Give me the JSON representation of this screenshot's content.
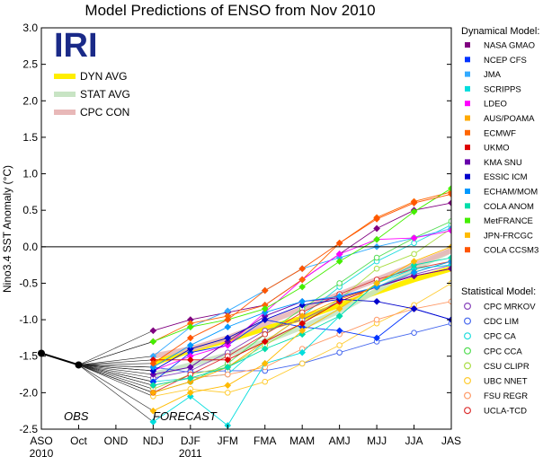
{
  "chart_data": {
    "type": "line",
    "title": "Model Predictions of ENSO from Nov 2010",
    "ylabel": "Nino3.4 SST Anomaly (°C)",
    "ylim": [
      -2.5,
      3.0
    ],
    "yticks": [
      3.0,
      2.5,
      2.0,
      1.5,
      1.0,
      0.5,
      0.0,
      -0.5,
      -1.0,
      -1.5,
      -2.0,
      -2.5
    ],
    "categories": [
      "ASO",
      "Oct",
      "OND",
      "NDJ",
      "DJF",
      "JFM",
      "FMA",
      "MAM",
      "AMJ",
      "MJJ",
      "JJA",
      "JAS"
    ],
    "year_labels": [
      {
        "label": "2010",
        "at": "ASO"
      },
      {
        "label": "2011",
        "at": "DJF"
      }
    ],
    "logo": "IRI",
    "annotations": [
      "OBS",
      "FORECAST"
    ],
    "observed": {
      "ASO": -1.46,
      "Oct": -1.62
    },
    "averages": [
      {
        "name": "DYN AVG",
        "color": "#ffee00",
        "values": [
          -1.6,
          -1.42,
          -1.28,
          -1.12,
          -0.98,
          -0.8,
          -0.62,
          -0.45,
          -0.3
        ]
      },
      {
        "name": "STAT AVG",
        "color": "#c8e4c4",
        "values": [
          -1.75,
          -1.62,
          -1.48,
          -1.3,
          -1.1,
          -0.88,
          -0.6,
          -0.3,
          -0.05
        ]
      },
      {
        "name": "CPC CON",
        "color": "#e8b8b8",
        "values": [
          -1.5,
          -1.4,
          -1.25,
          -1.05,
          -0.85,
          -0.65,
          -0.45,
          -0.25,
          -0.05
        ]
      }
    ],
    "dynamical_title": "Dynamical Model:",
    "statistical_title": "Statistical Model:",
    "dynamical": [
      {
        "name": "NASA GMAO",
        "color": "#800080",
        "values": [
          -1.15,
          -1.0,
          -0.9,
          -0.8,
          -0.45,
          -0.1,
          0.25,
          0.5,
          0.6
        ]
      },
      {
        "name": "NCEP CFS",
        "color": "#0033ff",
        "values": [
          -1.85,
          -1.45,
          -1.35,
          -1.0,
          -1.1,
          -1.15,
          -1.25,
          -0.85,
          -1.0
        ]
      },
      {
        "name": "JMA",
        "color": "#33aaff",
        "values": [
          -1.5,
          -1.1,
          -0.88,
          -0.6,
          -0.3,
          -0.15,
          0.0,
          0.12,
          0.25
        ]
      },
      {
        "name": "SCRIPPS",
        "color": "#00dddd",
        "values": [
          -2.4,
          -2.05,
          -2.45,
          -1.6,
          -1.45,
          -0.95,
          -0.5,
          -0.3,
          -0.25
        ]
      },
      {
        "name": "LDEO",
        "color": "#ff00ff",
        "values": [
          -1.7,
          -1.5,
          -1.35,
          -0.9,
          -0.45,
          -0.1,
          0.1,
          0.12,
          0.22
        ]
      },
      {
        "name": "AUS/POAMA",
        "color": "#ffaa00",
        "values": [
          -2.0,
          -1.85,
          -1.65,
          -1.3,
          -0.95,
          -0.72,
          -0.55,
          -0.35,
          -0.2
        ]
      },
      {
        "name": "ECMWF",
        "color": "#ff6600",
        "values": [
          -1.3,
          -1.05,
          -0.95,
          -0.8,
          -0.45,
          0.05,
          0.4,
          0.62,
          0.75
        ]
      },
      {
        "name": "UKMO",
        "color": "#dd0000",
        "values": [
          -1.55,
          -1.55,
          -1.55,
          -1.3,
          -1.05,
          -0.75,
          -0.55,
          -0.4,
          -0.3
        ]
      },
      {
        "name": "KMA SNU",
        "color": "#6600aa",
        "values": [
          -1.75,
          -1.65,
          -1.3,
          -0.95,
          -0.75,
          -0.7,
          -0.55,
          -0.4,
          -0.3
        ]
      },
      {
        "name": "ESSIC ICM",
        "color": "#0000cc",
        "values": [
          -1.7,
          -1.4,
          -1.25,
          -1.0,
          -0.8,
          -0.72,
          -0.75,
          -0.85,
          -1.0
        ]
      },
      {
        "name": "ECHAM/MOM",
        "color": "#0099ff",
        "values": [
          -1.65,
          -1.35,
          -1.1,
          -0.9,
          -0.75,
          -0.68,
          -0.55,
          -0.35,
          -0.2
        ]
      },
      {
        "name": "COLA ANOM",
        "color": "#00ddaa",
        "values": [
          -1.9,
          -1.8,
          -1.65,
          -1.4,
          -1.2,
          -0.95,
          -0.5,
          -0.25,
          -0.15
        ]
      },
      {
        "name": "MetFRANCE",
        "color": "#44ee00",
        "values": [
          -1.3,
          -1.1,
          -1.0,
          -0.85,
          -0.55,
          -0.2,
          0.1,
          0.48,
          0.8
        ]
      },
      {
        "name": "JPN-FRCGC",
        "color": "#ffbb00",
        "values": [
          -2.25,
          -2.0,
          -1.9,
          -1.6,
          -1.15,
          -0.85,
          -0.5,
          -0.2,
          0.0
        ]
      },
      {
        "name": "COLA CCSM3",
        "color": "#ff5500",
        "values": [
          -1.6,
          -1.25,
          -1.0,
          -0.6,
          -0.3,
          0.05,
          0.38,
          0.6,
          0.72
        ]
      }
    ],
    "statistical": [
      {
        "name": "CPC MRKOV",
        "color": "#8844bb",
        "values": [
          -1.8,
          -1.7,
          -1.45,
          -1.15,
          -1.0,
          -0.75,
          -0.55,
          -0.38,
          -0.25
        ]
      },
      {
        "name": "CDC LIM",
        "color": "#4466ee",
        "values": [
          -1.65,
          -1.72,
          -1.7,
          -1.7,
          -1.6,
          -1.45,
          -1.3,
          -1.18,
          -1.05
        ]
      },
      {
        "name": "CPC CA",
        "color": "#22dddd",
        "values": [
          -1.85,
          -1.8,
          -1.75,
          -1.3,
          -0.95,
          -0.55,
          -0.2,
          0.05,
          0.3
        ]
      },
      {
        "name": "CPC CCA",
        "color": "#55dd55",
        "values": [
          -2.0,
          -1.85,
          -1.6,
          -1.2,
          -0.85,
          -0.5,
          -0.15,
          0.12,
          0.35
        ]
      },
      {
        "name": "CSU CLIPR",
        "color": "#aadd44",
        "values": [
          -1.95,
          -1.75,
          -1.65,
          -1.35,
          -1.05,
          -0.72,
          -0.3,
          -0.1,
          0.25
        ]
      },
      {
        "name": "UBC NNET",
        "color": "#ffcc33",
        "values": [
          -2.05,
          -1.95,
          -2.0,
          -1.85,
          -1.6,
          -1.35,
          -1.05,
          -0.8,
          -0.5
        ]
      },
      {
        "name": "FSU REGR",
        "color": "#ff9966",
        "values": [
          -1.9,
          -1.8,
          -1.75,
          -1.65,
          -1.4,
          -1.2,
          -1.0,
          -0.85,
          -0.75
        ]
      },
      {
        "name": "UCLA-TCD",
        "color": "#dd3333",
        "values": [
          -2.0,
          -1.75,
          -1.5,
          -1.2,
          -0.9,
          -0.65,
          -0.45,
          -0.3,
          -0.2
        ]
      }
    ]
  }
}
